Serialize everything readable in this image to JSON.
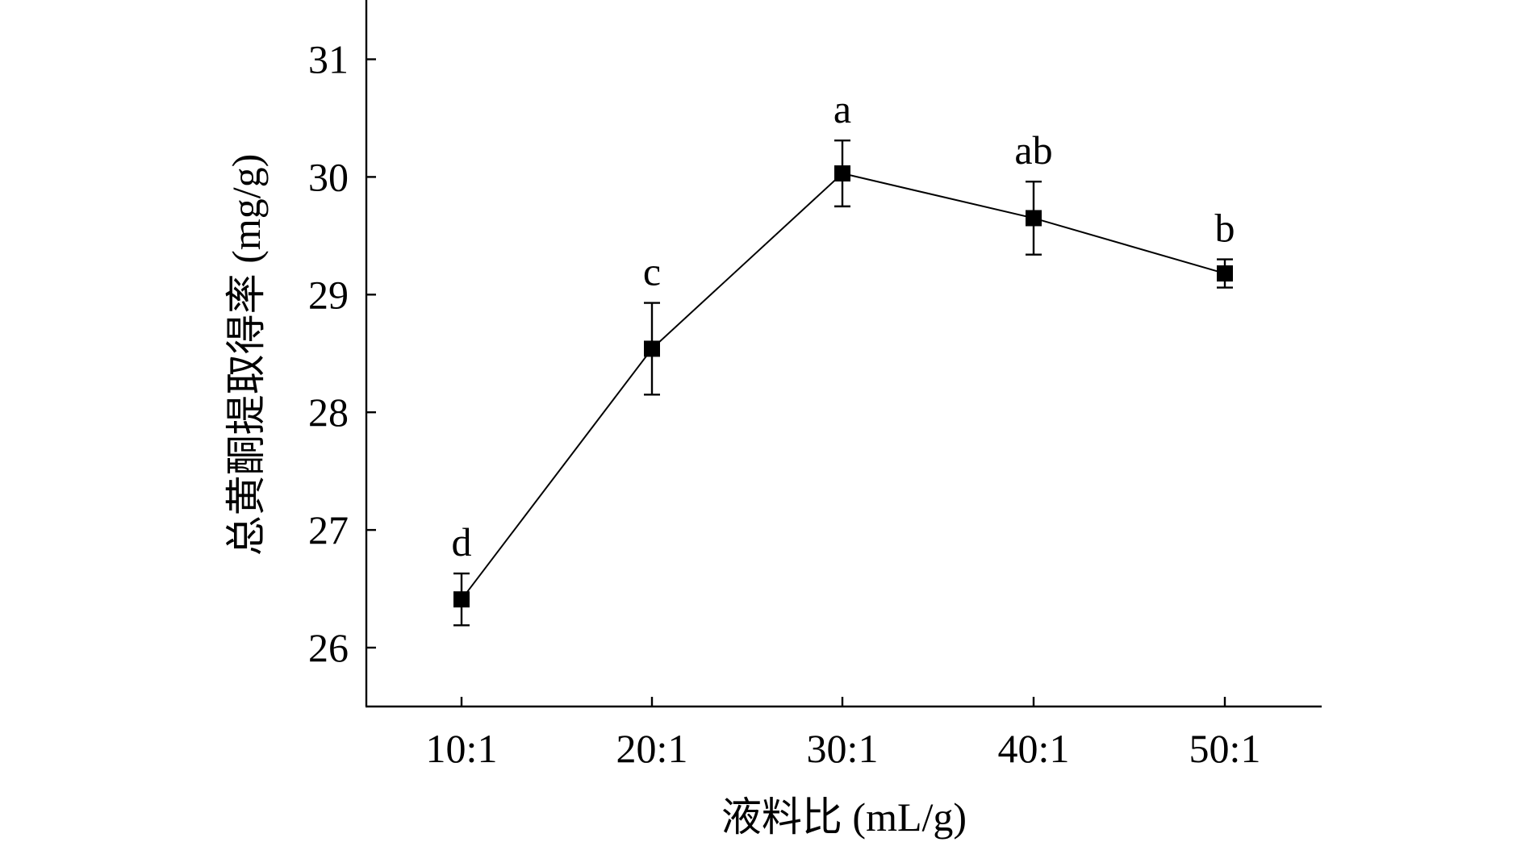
{
  "chart_data": {
    "type": "line",
    "title": "",
    "xlabel": "液料比 (mL/g)",
    "ylabel": "总黄酮提取得率 (mg/g)",
    "categories": [
      "10:1",
      "20:1",
      "30:1",
      "40:1",
      "50:1"
    ],
    "series": [
      {
        "name": "总黄酮提取得率",
        "values": [
          26.41,
          28.54,
          30.03,
          29.65,
          29.18
        ],
        "errors": [
          0.22,
          0.39,
          0.28,
          0.31,
          0.12
        ],
        "significance": [
          "d",
          "c",
          "a",
          "ab",
          "b"
        ],
        "color": "#000000",
        "marker": "square"
      }
    ],
    "ylim": [
      25.5,
      31.5
    ],
    "yticks": [
      "26",
      "27",
      "28",
      "29",
      "30",
      "31"
    ],
    "grid": false,
    "legend": "none"
  }
}
